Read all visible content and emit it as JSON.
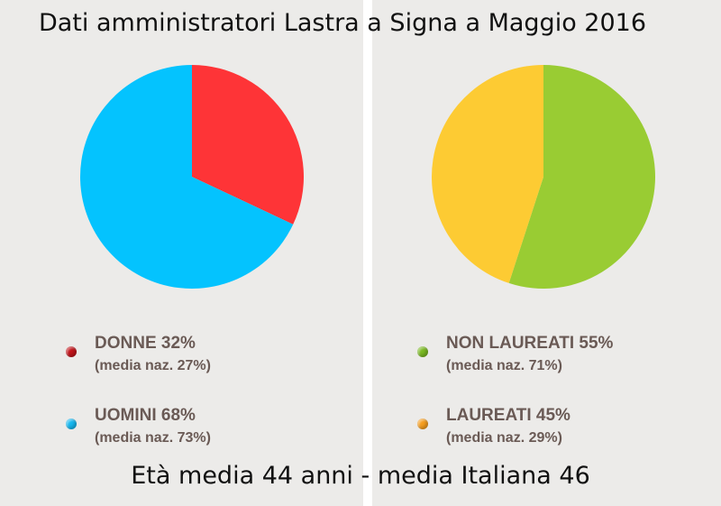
{
  "title": "Dati amministratori Lastra a Signa a Maggio 2016",
  "footer": "Età media 44 anni - media Italiana 46",
  "chart_data": [
    {
      "type": "pie",
      "slices": [
        {
          "label": "DONNE 32%",
          "note": "(media naz. 27%)",
          "value": 32,
          "color": "#fe3437",
          "dot_color": "#c0141a"
        },
        {
          "label": "UOMINI 68%",
          "note": "(media naz. 73%)",
          "value": 68,
          "color": "#04c3fe",
          "dot_color": "#16b7ef"
        }
      ]
    },
    {
      "type": "pie",
      "slices": [
        {
          "label": "NON LAUREATI 55%",
          "note": "(media naz. 71%)",
          "value": 55,
          "color": "#99cc33",
          "dot_color": "#7ab822"
        },
        {
          "label": "LAUREATI 45%",
          "note": "(media naz. 29%)",
          "value": 45,
          "color": "#fdcb33",
          "dot_color": "#f59d1e"
        }
      ]
    }
  ]
}
